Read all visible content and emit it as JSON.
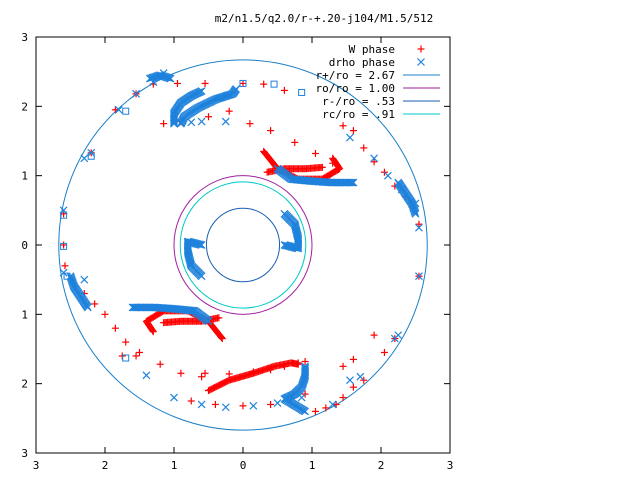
{
  "chart_data": {
    "type": "scatter",
    "title": "m2/n1.5/q2.0/r-+.20-j104/M1.5/512",
    "xlim": [
      -3,
      3
    ],
    "ylim": [
      -3,
      3
    ],
    "x_ticks": [
      {
        "value": -3,
        "label": "3"
      },
      {
        "value": -2,
        "label": "2"
      },
      {
        "value": -1,
        "label": "1"
      },
      {
        "value": 0,
        "label": "0"
      },
      {
        "value": 1,
        "label": "1"
      },
      {
        "value": 2,
        "label": "2"
      },
      {
        "value": 3,
        "label": "3"
      }
    ],
    "y_ticks": [
      {
        "value": 3,
        "label": "3"
      },
      {
        "value": 2,
        "label": "2"
      },
      {
        "value": 1,
        "label": "1"
      },
      {
        "value": 0,
        "label": "0"
      },
      {
        "value": -1,
        "label": "1"
      },
      {
        "value": -2,
        "label": "2"
      },
      {
        "value": -3,
        "label": "3"
      }
    ],
    "grid": false,
    "legend_position": "top-right",
    "series": [
      {
        "name": "W phase",
        "marker": "plus",
        "color": "#ff0000",
        "points": [
          [
            -1.15,
            1.75
          ],
          [
            -0.9,
            1.78
          ],
          [
            -0.5,
            1.85
          ],
          [
            -0.2,
            1.93
          ],
          [
            0.1,
            1.75
          ],
          [
            0.4,
            1.65
          ],
          [
            0.75,
            1.48
          ],
          [
            1.05,
            1.32
          ],
          [
            1.3,
            1.18
          ],
          [
            -2.2,
            1.33
          ],
          [
            -1.85,
            1.95
          ],
          [
            -1.55,
            2.18
          ],
          [
            -1.3,
            2.32
          ],
          [
            -0.95,
            2.33
          ],
          [
            -0.55,
            2.33
          ],
          [
            0.0,
            2.33
          ],
          [
            0.3,
            2.32
          ],
          [
            0.6,
            2.23
          ],
          [
            1.45,
            1.72
          ],
          [
            1.6,
            1.65
          ],
          [
            1.75,
            1.4
          ],
          [
            1.9,
            1.2
          ],
          [
            2.05,
            1.05
          ],
          [
            2.2,
            0.85
          ],
          [
            2.35,
            0.7
          ],
          [
            2.45,
            0.55
          ],
          [
            2.55,
            0.3
          ],
          [
            2.55,
            -0.45
          ],
          [
            -2.6,
            0.45
          ],
          [
            -2.6,
            0.0
          ],
          [
            -2.58,
            -0.3
          ],
          [
            -2.45,
            -0.55
          ],
          [
            -2.3,
            -0.7
          ],
          [
            -2.15,
            -0.85
          ],
          [
            -2.0,
            -1.0
          ],
          [
            -1.85,
            -1.2
          ],
          [
            -1.7,
            -1.4
          ],
          [
            -1.55,
            -1.6
          ],
          [
            -1.75,
            -1.6
          ],
          [
            -1.5,
            -1.55
          ],
          [
            -0.55,
            -1.85
          ],
          [
            -0.2,
            -1.86
          ],
          [
            0.15,
            -1.83
          ],
          [
            0.4,
            -1.8
          ],
          [
            0.6,
            -1.75
          ],
          [
            0.8,
            -1.7
          ],
          [
            0.9,
            -1.68
          ],
          [
            -1.2,
            -1.72
          ],
          [
            -0.9,
            -1.85
          ],
          [
            -0.6,
            -1.9
          ],
          [
            1.45,
            -1.75
          ],
          [
            1.6,
            -1.65
          ],
          [
            1.9,
            -1.3
          ],
          [
            2.2,
            -1.35
          ],
          [
            -0.75,
            -2.25
          ],
          [
            -0.4,
            -2.3
          ],
          [
            0.0,
            -2.32
          ],
          [
            0.4,
            -2.3
          ],
          [
            0.7,
            -2.2
          ],
          [
            0.9,
            -2.15
          ],
          [
            1.05,
            -2.4
          ],
          [
            1.2,
            -2.35
          ],
          [
            1.35,
            -2.3
          ],
          [
            1.45,
            -2.2
          ],
          [
            1.6,
            -2.05
          ],
          [
            1.75,
            -1.95
          ],
          [
            2.05,
            -1.55
          ]
        ],
        "curves": [
          [
            [
              0.3,
              1.35
            ],
            [
              0.5,
              1.1
            ],
            [
              0.8,
              0.95
            ],
            [
              1.15,
              0.95
            ],
            [
              1.4,
              1.1
            ],
            [
              1.3,
              1.25
            ]
          ],
          [
            [
              -0.3,
              -1.35
            ],
            [
              -0.5,
              -1.1
            ],
            [
              -0.8,
              -0.95
            ],
            [
              -1.15,
              -0.95
            ],
            [
              -1.4,
              -1.1
            ],
            [
              -1.3,
              -1.25
            ]
          ],
          [
            [
              0.35,
              1.05
            ],
            [
              0.6,
              1.1
            ],
            [
              0.9,
              1.1
            ],
            [
              1.15,
              1.12
            ]
          ],
          [
            [
              -0.35,
              -1.05
            ],
            [
              -0.6,
              -1.1
            ],
            [
              -0.9,
              -1.1
            ],
            [
              -1.15,
              -1.12
            ]
          ],
          [
            [
              -0.5,
              -2.1
            ],
            [
              -0.2,
              -1.95
            ],
            [
              0.15,
              -1.85
            ],
            [
              0.45,
              -1.75
            ],
            [
              0.7,
              -1.7
            ],
            [
              0.8,
              -1.72
            ]
          ]
        ]
      },
      {
        "name": "drho phase",
        "marker": "cross",
        "color": "#1e82dc",
        "points": [
          [
            -2.3,
            -0.5
          ],
          [
            -2.6,
            -0.4
          ],
          [
            -2.6,
            0.5
          ],
          [
            -2.3,
            1.25
          ],
          [
            -2.2,
            1.33
          ],
          [
            -1.8,
            1.95
          ],
          [
            -1.55,
            2.18
          ],
          [
            -1.3,
            2.35
          ],
          [
            -1.15,
            2.48
          ],
          [
            1.55,
            1.55
          ],
          [
            1.9,
            1.25
          ],
          [
            2.1,
            1.0
          ],
          [
            2.3,
            0.8
          ],
          [
            2.5,
            0.6
          ],
          [
            2.55,
            0.25
          ],
          [
            2.55,
            -0.45
          ],
          [
            2.25,
            -1.3
          ],
          [
            2.2,
            -1.35
          ],
          [
            1.7,
            -1.9
          ],
          [
            1.55,
            -1.95
          ],
          [
            1.3,
            -2.3
          ],
          [
            -1.4,
            -1.88
          ],
          [
            -1.0,
            -2.2
          ],
          [
            -0.6,
            -2.3
          ],
          [
            -0.25,
            -2.34
          ],
          [
            0.15,
            -2.32
          ],
          [
            0.5,
            -2.28
          ],
          [
            0.85,
            -2.2
          ],
          [
            -0.25,
            1.78
          ],
          [
            -0.6,
            1.78
          ],
          [
            -0.75,
            1.77
          ],
          [
            -0.9,
            1.76
          ]
        ],
        "curves": [
          [
            [
              -0.9,
              1.75
            ],
            [
              -0.85,
              1.85
            ],
            [
              -0.65,
              1.98
            ],
            [
              -0.4,
              2.1
            ],
            [
              -0.15,
              2.18
            ],
            [
              -0.1,
              2.25
            ]
          ],
          [
            [
              -1.0,
              1.75
            ],
            [
              -1.0,
              1.9
            ],
            [
              -0.9,
              2.05
            ],
            [
              -0.75,
              2.15
            ],
            [
              -0.6,
              2.22
            ]
          ],
          [
            [
              0.5,
              1.1
            ],
            [
              0.7,
              0.95
            ],
            [
              1.0,
              0.92
            ],
            [
              1.3,
              0.9
            ],
            [
              1.6,
              0.9
            ]
          ],
          [
            [
              0.6,
              0.45
            ],
            [
              0.75,
              0.3
            ],
            [
              0.8,
              0.1
            ],
            [
              0.8,
              -0.05
            ],
            [
              0.6,
              0.0
            ]
          ],
          [
            [
              -0.6,
              -0.45
            ],
            [
              -0.75,
              -0.3
            ],
            [
              -0.8,
              -0.1
            ],
            [
              -0.8,
              0.05
            ],
            [
              -0.6,
              0.0
            ]
          ],
          [
            [
              -0.5,
              -1.1
            ],
            [
              -0.7,
              -0.95
            ],
            [
              -1.0,
              -0.92
            ],
            [
              -1.3,
              -0.9
            ],
            [
              -1.6,
              -0.9
            ]
          ],
          [
            [
              0.9,
              -1.75
            ],
            [
              0.9,
              -1.9
            ],
            [
              0.85,
              -2.05
            ],
            [
              0.75,
              -2.15
            ],
            [
              0.6,
              -2.22
            ],
            [
              0.9,
              -2.4
            ]
          ],
          [
            [
              2.25,
              0.9
            ],
            [
              2.35,
              0.75
            ],
            [
              2.45,
              0.6
            ],
            [
              2.5,
              0.45
            ]
          ],
          [
            [
              -2.25,
              -0.9
            ],
            [
              -2.35,
              -0.75
            ],
            [
              -2.45,
              -0.6
            ],
            [
              -2.5,
              -0.45
            ]
          ],
          [
            [
              -1.05,
              2.4
            ],
            [
              -1.2,
              2.45
            ],
            [
              -1.35,
              2.4
            ]
          ]
        ]
      },
      {
        "name": "r+/ro = 2.67",
        "type": "circle",
        "radius": 2.67,
        "color": "#1a7fc8"
      },
      {
        "name": "ro/ro = 1.00",
        "type": "circle",
        "radius": 1.0,
        "color": "#a020a0"
      },
      {
        "name": "r-/ro = .53",
        "type": "circle",
        "radius": 0.53,
        "color": "#1a5fb4"
      },
      {
        "name": "rc/ro = .91",
        "type": "circle",
        "radius": 0.91,
        "color": "#00c8c8"
      }
    ],
    "squares": [
      [
        -2.2,
        1.28
      ],
      [
        -1.7,
        1.93
      ],
      [
        0.0,
        2.33
      ],
      [
        0.45,
        2.32
      ],
      [
        0.85,
        2.2
      ],
      [
        -2.6,
        0.43
      ],
      [
        -2.6,
        -0.02
      ],
      [
        -1.7,
        -1.63
      ],
      [
        -2.55,
        -0.45
      ]
    ]
  }
}
